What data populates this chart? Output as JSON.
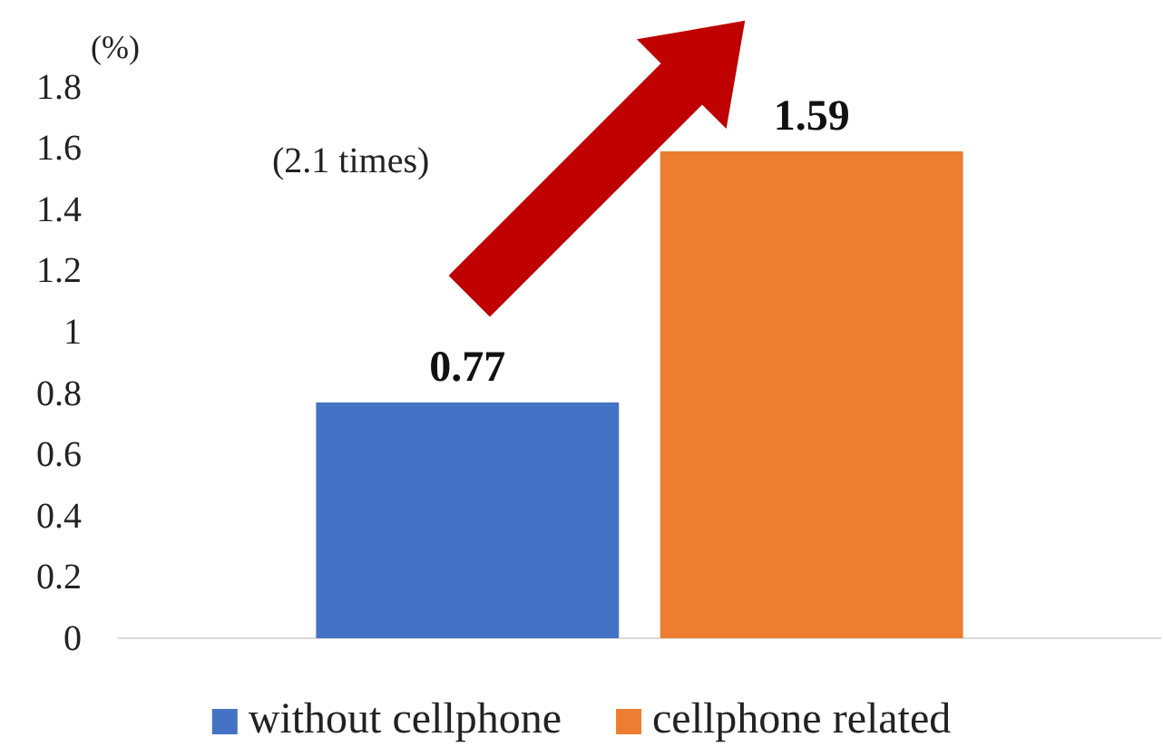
{
  "chart_data": {
    "type": "bar",
    "ylabel": "(%)",
    "categories": [
      null
    ],
    "series": [
      {
        "name": "without cellphone",
        "color": "#4472c4",
        "values": [
          0.77
        ]
      },
      {
        "name": "cellphone related",
        "color": "#ed7d31",
        "values": [
          1.59
        ]
      }
    ],
    "ylim": [
      0,
      1.8
    ],
    "yticks": [
      0,
      0.2,
      0.4,
      0.6,
      0.8,
      1,
      1.2,
      1.4,
      1.6,
      1.8
    ],
    "grid": false,
    "legend": "bottom",
    "data_labels": true,
    "annotations": [
      "(2.1 times)"
    ]
  }
}
